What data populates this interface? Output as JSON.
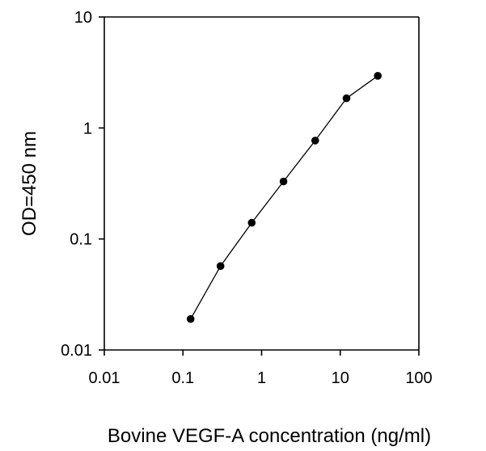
{
  "chart_data": {
    "type": "line",
    "title": "",
    "xlabel": "Bovine VEGF-A concentration (ng/ml)",
    "ylabel": "OD=450 nm",
    "x_scale": "log",
    "y_scale": "log",
    "xlim": [
      0.01,
      100
    ],
    "ylim": [
      0.01,
      10
    ],
    "grid": false,
    "legend": "none",
    "x_ticks": [
      {
        "value": 0.01,
        "label": "0.01"
      },
      {
        "value": 0.1,
        "label": "0.1"
      },
      {
        "value": 1,
        "label": "1"
      },
      {
        "value": 10,
        "label": "10"
      },
      {
        "value": 100,
        "label": "100"
      }
    ],
    "y_ticks": [
      {
        "value": 0.01,
        "label": "0.01"
      },
      {
        "value": 0.1,
        "label": "0.1"
      },
      {
        "value": 1,
        "label": "1"
      },
      {
        "value": 10,
        "label": "10"
      }
    ],
    "series": [
      {
        "x": [
          0.125,
          0.3,
          0.75,
          1.9,
          4.8,
          12,
          30
        ],
        "y": [
          0.019,
          0.057,
          0.14,
          0.33,
          0.77,
          1.85,
          2.95
        ]
      }
    ],
    "colors": {
      "line": "#000000",
      "marker": "#000000",
      "axis": "#000000",
      "background": "#ffffff"
    }
  }
}
